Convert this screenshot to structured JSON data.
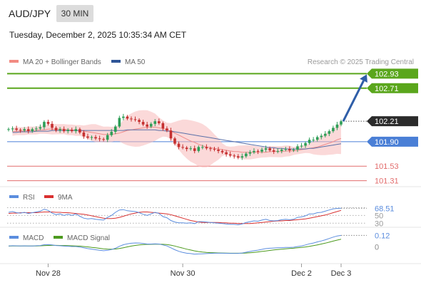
{
  "header": {
    "symbol": "AUD/JPY",
    "timeframe": "30 MIN",
    "datetime": "Tuesday, December 2, 2025 10:35:34 AM CET",
    "credit": "Research © 2025 Trading Central"
  },
  "colors": {
    "target": "#5aa61c",
    "pivot": "#4a7fd6",
    "support": "#e26b6b",
    "current": "#2b2b2b",
    "bull": "#2e9e57",
    "bear": "#c53030",
    "bollinger": "#f7b9b9",
    "ma20": "#ef8c8c",
    "ma50": "#5a70a8",
    "rsi": "#5b8dde",
    "rsi_ma": "#d93030",
    "macd": "#5b8dde",
    "macd_signal": "#4c9a1e",
    "arrow": "#2f5ea8"
  },
  "chart_data": [
    {
      "type": "candlestick",
      "panel": "price",
      "legend": [
        {
          "name": "MA 20 + Bollinger Bands",
          "color": "#f28b82"
        },
        {
          "name": "MA 50",
          "color": "#2f5597"
        }
      ],
      "ylim": [
        101.22,
        103.02
      ],
      "levels": [
        {
          "value": 102.93,
          "label": "102.93",
          "kind": "target"
        },
        {
          "value": 102.71,
          "label": "102.71",
          "kind": "target"
        },
        {
          "value": 102.21,
          "label": "102.21",
          "kind": "current"
        },
        {
          "value": 101.9,
          "label": "101.90",
          "kind": "pivot"
        },
        {
          "value": 101.53,
          "label": "101.53",
          "kind": "support"
        },
        {
          "value": 101.31,
          "label": "101.31",
          "kind": "support"
        }
      ],
      "close": [
        102.09,
        102.1,
        102.08,
        102.07,
        102.09,
        102.06,
        102.09,
        102.1,
        102.12,
        102.2,
        102.17,
        102.11,
        102.07,
        102.09,
        102.06,
        102.08,
        102.06,
        102.09,
        102.04,
        101.98,
        101.96,
        101.97,
        101.95,
        101.94,
        101.93,
        102.0,
        102.05,
        102.13,
        102.26,
        102.28,
        102.25,
        102.24,
        102.23,
        102.2,
        102.16,
        102.13,
        102.17,
        102.21,
        102.18,
        102.1,
        102.07,
        101.95,
        101.87,
        101.82,
        101.81,
        101.79,
        101.8,
        101.76,
        101.82,
        101.82,
        101.8,
        101.79,
        101.78,
        101.76,
        101.74,
        101.71,
        101.69,
        101.68,
        101.66,
        101.68,
        101.72,
        101.74,
        101.76,
        101.75,
        101.78,
        101.8,
        101.77,
        101.75,
        101.76,
        101.78,
        101.79,
        101.77,
        101.78,
        101.83,
        101.84,
        101.88,
        101.93,
        101.93,
        101.97,
        101.99,
        102.02,
        102.06,
        102.11,
        102.16,
        102.21
      ],
      "series": [
        {
          "name": "MA 20",
          "values": [
            102.05,
            102.06,
            102.06,
            102.06,
            102.07,
            102.07,
            102.07,
            102.08,
            102.08,
            102.09,
            102.09,
            102.09,
            102.09,
            102.09,
            102.08,
            102.08,
            102.07,
            102.07,
            102.06,
            102.05,
            102.04,
            102.03,
            102.02,
            102.01,
            102.01,
            102.01,
            102.02,
            102.03,
            102.05,
            102.07,
            102.08,
            102.09,
            102.1,
            102.11,
            102.12,
            102.12,
            102.12,
            102.11,
            102.1,
            102.08,
            102.06,
            102.03,
            102.0,
            101.97,
            101.94,
            101.91,
            101.89,
            101.86,
            101.84,
            101.82,
            101.81,
            101.8,
            101.79,
            101.78,
            101.77,
            101.76,
            101.75,
            101.75,
            101.74,
            101.74,
            101.74,
            101.74,
            101.74,
            101.74,
            101.74,
            101.75,
            101.75,
            101.75,
            101.75,
            101.76,
            101.76,
            101.76,
            101.77,
            101.78,
            101.79,
            101.8,
            101.81,
            101.82,
            101.84,
            101.86,
            101.88,
            101.9,
            101.93,
            101.95
          ]
        },
        {
          "name": "MA 50",
          "values": [
            102.04,
            102.04,
            102.05,
            102.05,
            102.05,
            102.05,
            102.06,
            102.06,
            102.06,
            102.06,
            102.07,
            102.07,
            102.07,
            102.07,
            102.07,
            102.07,
            102.07,
            102.07,
            102.07,
            102.07,
            102.07,
            102.07,
            102.07,
            102.07,
            102.07,
            102.07,
            102.07,
            102.07,
            102.07,
            102.08,
            102.08,
            102.08,
            102.08,
            102.08,
            102.08,
            102.08,
            102.08,
            102.07,
            102.07,
            102.06,
            102.06,
            102.05,
            102.04,
            102.03,
            102.02,
            102.01,
            102.0,
            101.99,
            101.98,
            101.97,
            101.96,
            101.95,
            101.94,
            101.93,
            101.92,
            101.91,
            101.9,
            101.89,
            101.88,
            101.87,
            101.86,
            101.85,
            101.84,
            101.83,
            101.82,
            101.81,
            101.81,
            101.8,
            101.8,
            101.79,
            101.79,
            101.79,
            101.79,
            101.79,
            101.79,
            101.8,
            101.8,
            101.81,
            101.82,
            101.83,
            101.84,
            101.85,
            101.86,
            101.87
          ]
        }
      ]
    },
    {
      "type": "line",
      "panel": "rsi",
      "legend": [
        {
          "name": "RSI",
          "color": "#5b8dde"
        },
        {
          "name": "9MA",
          "color": "#d93030"
        }
      ],
      "ylim": [
        25,
        80
      ],
      "reference_levels": [
        30,
        50,
        70
      ],
      "last_value": "68.51",
      "series": [
        {
          "name": "RSI",
          "values": [
            58,
            60,
            57,
            56,
            58,
            55,
            57,
            59,
            61,
            66,
            63,
            56,
            52,
            54,
            50,
            53,
            50,
            54,
            48,
            43,
            41,
            42,
            40,
            39,
            38,
            45,
            50,
            58,
            64,
            65,
            62,
            61,
            60,
            57,
            53,
            50,
            54,
            58,
            55,
            47,
            44,
            37,
            33,
            31,
            31,
            30,
            31,
            29,
            34,
            34,
            33,
            32,
            31,
            30,
            29,
            28,
            27,
            27,
            26,
            28,
            32,
            34,
            36,
            35,
            38,
            40,
            37,
            36,
            37,
            39,
            40,
            39,
            40,
            45,
            46,
            49,
            54,
            54,
            57,
            58,
            61,
            64,
            67,
            68,
            68.51
          ]
        },
        {
          "name": "9MA",
          "values": [
            55,
            56,
            56,
            57,
            57,
            57,
            57,
            57,
            58,
            59,
            59,
            59,
            58,
            58,
            57,
            57,
            56,
            55,
            54,
            53,
            51,
            49,
            47,
            45,
            43,
            42,
            42,
            43,
            45,
            48,
            51,
            54,
            56,
            58,
            59,
            59,
            58,
            57,
            56,
            55,
            54,
            52,
            49,
            46,
            43,
            40,
            37,
            35,
            33,
            32,
            32,
            32,
            32,
            32,
            31,
            31,
            30,
            30,
            29,
            29,
            29,
            29,
            30,
            31,
            32,
            33,
            34,
            35,
            36,
            36,
            37,
            37,
            38,
            39,
            40,
            41,
            43,
            45,
            47,
            49,
            51,
            54,
            57,
            60,
            63
          ]
        }
      ]
    },
    {
      "type": "line",
      "panel": "macd",
      "legend": [
        {
          "name": "MACD",
          "color": "#5b8dde"
        },
        {
          "name": "MACD Signal",
          "color": "#4c9a1e"
        }
      ],
      "ylim": [
        -0.16,
        0.16
      ],
      "ticks": [
        {
          "value": 0.12,
          "label": "0.12"
        },
        {
          "value": 0,
          "label": "0"
        }
      ],
      "series": [
        {
          "name": "MACD",
          "values": [
            0.01,
            0.012,
            0.011,
            0.01,
            0.011,
            0.009,
            0.01,
            0.012,
            0.014,
            0.022,
            0.024,
            0.02,
            0.014,
            0.012,
            0.008,
            0.007,
            0.004,
            0.004,
            -0.002,
            -0.01,
            -0.018,
            -0.024,
            -0.03,
            -0.036,
            -0.04,
            -0.036,
            -0.028,
            -0.014,
            0.006,
            0.022,
            0.032,
            0.038,
            0.041,
            0.04,
            0.036,
            0.03,
            0.03,
            0.032,
            0.03,
            0.02,
            0.01,
            -0.01,
            -0.03,
            -0.046,
            -0.058,
            -0.066,
            -0.07,
            -0.076,
            -0.074,
            -0.072,
            -0.07,
            -0.068,
            -0.066,
            -0.066,
            -0.066,
            -0.067,
            -0.068,
            -0.068,
            -0.068,
            -0.064,
            -0.056,
            -0.048,
            -0.04,
            -0.034,
            -0.026,
            -0.018,
            -0.014,
            -0.012,
            -0.01,
            -0.008,
            -0.006,
            -0.006,
            -0.004,
            0.004,
            0.01,
            0.02,
            0.032,
            0.04,
            0.052,
            0.062,
            0.074,
            0.088,
            0.102,
            0.114,
            0.12
          ]
        },
        {
          "name": "MACD Signal",
          "values": [
            0.008,
            0.009,
            0.009,
            0.01,
            0.01,
            0.01,
            0.01,
            0.01,
            0.011,
            0.013,
            0.015,
            0.016,
            0.016,
            0.015,
            0.014,
            0.013,
            0.011,
            0.01,
            0.008,
            0.004,
            0.0,
            -0.005,
            -0.01,
            -0.015,
            -0.02,
            -0.023,
            -0.024,
            -0.022,
            -0.017,
            -0.009,
            0.0,
            0.008,
            0.015,
            0.02,
            0.024,
            0.026,
            0.027,
            0.028,
            0.028,
            0.027,
            0.024,
            0.018,
            0.009,
            -0.002,
            -0.013,
            -0.024,
            -0.033,
            -0.042,
            -0.049,
            -0.054,
            -0.058,
            -0.06,
            -0.062,
            -0.063,
            -0.064,
            -0.065,
            -0.066,
            -0.066,
            -0.066,
            -0.066,
            -0.064,
            -0.061,
            -0.057,
            -0.053,
            -0.048,
            -0.043,
            -0.037,
            -0.032,
            -0.028,
            -0.024,
            -0.02,
            -0.017,
            -0.014,
            -0.01,
            -0.006,
            -0.001,
            0.006,
            0.013,
            0.021,
            0.03,
            0.039,
            0.049,
            0.06,
            0.071,
            0.08
          ]
        }
      ]
    }
  ],
  "x_axis": {
    "ticks": [
      {
        "index": 10,
        "label": "Nov 28"
      },
      {
        "index": 44,
        "label": "Nov 30"
      },
      {
        "index": 74,
        "label": "Dec 2"
      },
      {
        "index": 86,
        "label": "Dec 3"
      }
    ]
  }
}
